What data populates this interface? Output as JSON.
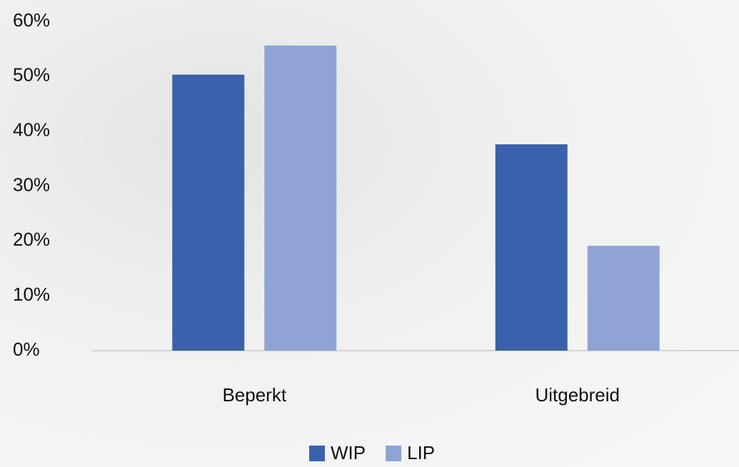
{
  "chart_data": {
    "type": "bar",
    "categories": [
      "Beperkt",
      "Uitgebreid"
    ],
    "series": [
      {
        "name": "WIP",
        "color": "#3a61ab",
        "values": [
          50.3,
          37.6
        ]
      },
      {
        "name": "LIP",
        "color": "#8fa3d4",
        "values": [
          55.6,
          19.1
        ]
      }
    ],
    "ylim": [
      0,
      60
    ],
    "yticks": [
      {
        "value": 0,
        "label": "0%"
      },
      {
        "value": 10,
        "label": "10%"
      },
      {
        "value": 20,
        "label": "20%"
      },
      {
        "value": 30,
        "label": "30%"
      },
      {
        "value": 40,
        "label": "40%"
      },
      {
        "value": 50,
        "label": "50%"
      },
      {
        "value": 60,
        "label": "60%"
      }
    ],
    "grid": false,
    "legend": "bottom"
  }
}
